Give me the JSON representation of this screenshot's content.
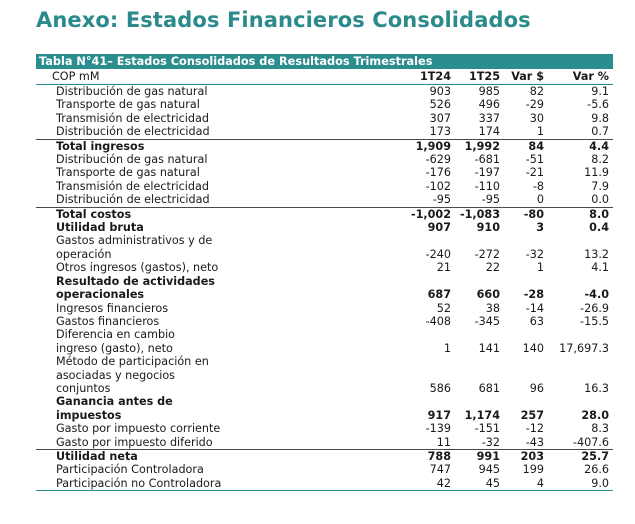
{
  "page_title": "Anexo: Estados Financieros Consolidados",
  "table_caption": "Tabla N°41– Estados Consolidados de Resultados Trimestrales",
  "header": {
    "unit": "COP mM",
    "col_a": "1T24",
    "col_b": "1T25",
    "col_c": "Var $",
    "col_d": "Var %"
  },
  "rows": [
    {
      "label": "Distribución de gas natural",
      "a": "903",
      "b": "985",
      "c": "82",
      "d": "9.1"
    },
    {
      "label": "Transporte de gas natural",
      "a": "526",
      "b": "496",
      "c": "-29",
      "d": "-5.6"
    },
    {
      "label": "Transmisión de electricidad",
      "a": "307",
      "b": "337",
      "c": "30",
      "d": "9.8"
    },
    {
      "label": "Distribución de electricidad",
      "a": "173",
      "b": "174",
      "c": "1",
      "d": "0.7"
    },
    {
      "label": "Total ingresos",
      "a": "1,909",
      "b": "1,992",
      "c": "84",
      "d": "4.4"
    },
    {
      "label": "Distribución de gas natural",
      "a": "-629",
      "b": "-681",
      "c": "-51",
      "d": "8.2"
    },
    {
      "label": "Transporte de gas natural",
      "a": "-176",
      "b": "-197",
      "c": "-21",
      "d": "11.9"
    },
    {
      "label": "Transmisión de electricidad",
      "a": "-102",
      "b": "-110",
      "c": "-8",
      "d": "7.9"
    },
    {
      "label": "Distribución de electricidad",
      "a": "-95",
      "b": "-95",
      "c": "0",
      "d": "0.0"
    },
    {
      "label": "Total costos",
      "a": "-1,002",
      "b": "-1,083",
      "c": "-80",
      "d": "8.0"
    },
    {
      "label": "Utilidad bruta",
      "a": "907",
      "b": "910",
      "c": "3",
      "d": "0.4"
    },
    {
      "label": "Gastos administrativos y de operación",
      "a": "-240",
      "b": "-272",
      "c": "-32",
      "d": "13.2"
    },
    {
      "label": "Otros ingresos (gastos), neto",
      "a": "21",
      "b": "22",
      "c": "1",
      "d": "4.1"
    },
    {
      "label": "Resultado de actividades operacionales",
      "a": "687",
      "b": "660",
      "c": "-28",
      "d": "-4.0"
    },
    {
      "label": "Ingresos financieros",
      "a": "52",
      "b": "38",
      "c": "-14",
      "d": "-26.9"
    },
    {
      "label": "Gastos financieros",
      "a": "-408",
      "b": "-345",
      "c": "63",
      "d": "-15.5"
    },
    {
      "label": "Diferencia en cambio ingreso (gasto), neto",
      "a": "1",
      "b": "141",
      "c": "140",
      "d": "17,697.3"
    },
    {
      "label": "Método de participación en asociadas y negocios conjuntos",
      "a": "586",
      "b": "681",
      "c": "96",
      "d": "16.3"
    },
    {
      "label": "Ganancia antes de impuestos",
      "a": "917",
      "b": "1,174",
      "c": "257",
      "d": "28.0"
    },
    {
      "label": "Gasto por impuesto corriente",
      "a": "-139",
      "b": "-151",
      "c": "-12",
      "d": "8.3"
    },
    {
      "label": "Gasto por impuesto diferido",
      "a": "11",
      "b": "-32",
      "c": "-43",
      "d": "-407.6"
    },
    {
      "label": "Utilidad neta",
      "a": "788",
      "b": "991",
      "c": "203",
      "d": "25.7"
    },
    {
      "label": "Participación Controladora",
      "a": "747",
      "b": "945",
      "c": "199",
      "d": "26.6"
    },
    {
      "label": "Participación no Controladora",
      "a": "42",
      "b": "45",
      "c": "4",
      "d": "9.0"
    }
  ]
}
